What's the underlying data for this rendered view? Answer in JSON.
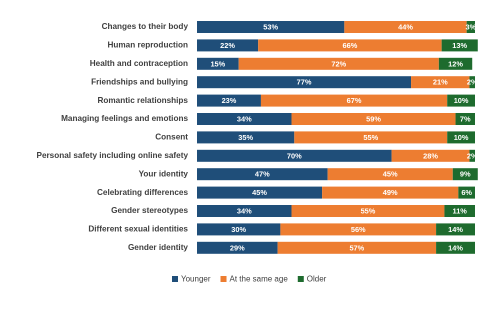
{
  "chart_data": {
    "type": "stacked-bar",
    "categories": [
      "Changes to their body",
      "Human reproduction",
      "Health and contraception",
      "Friendships and bullying",
      "Romantic relationships",
      "Managing feelings and emotions",
      "Consent",
      "Personal safety including online safety",
      "Your identity",
      "Celebrating differences",
      "Gender stereotypes",
      "Different sexual identities",
      "Gender identity"
    ],
    "xlim": [
      0,
      100
    ],
    "series": [
      {
        "name": "Younger",
        "color": "#1f4e79",
        "values": [
          53,
          22,
          15,
          77,
          23,
          34,
          35,
          70,
          47,
          45,
          34,
          30,
          29
        ],
        "value_labels": [
          "53%",
          "22%",
          "15%",
          "77%",
          "23%",
          "34%",
          "35%",
          "70%",
          "47%",
          "45%",
          "34%",
          "30%",
          "29%"
        ]
      },
      {
        "name": "At the same age",
        "color": "#ed7d31",
        "values": [
          44,
          66,
          72,
          21,
          67,
          59,
          55,
          28,
          45,
          49,
          55,
          56,
          57
        ],
        "value_labels": [
          "44%",
          "66%",
          "72%",
          "21%",
          "67%",
          "59%",
          "55%",
          "28%",
          "45%",
          "49%",
          "55%",
          "56%",
          "57%"
        ]
      },
      {
        "name": "Older",
        "color": "#1e6b2e",
        "values": [
          3,
          13,
          12,
          2,
          10,
          7,
          10,
          2,
          9,
          6,
          11,
          14,
          14
        ],
        "value_labels": [
          "3%",
          "13%",
          "12%",
          "2%",
          "10%",
          "7%",
          "10%",
          "2%",
          "9%",
          "6%",
          "11%",
          "14%",
          "14%"
        ]
      }
    ]
  }
}
